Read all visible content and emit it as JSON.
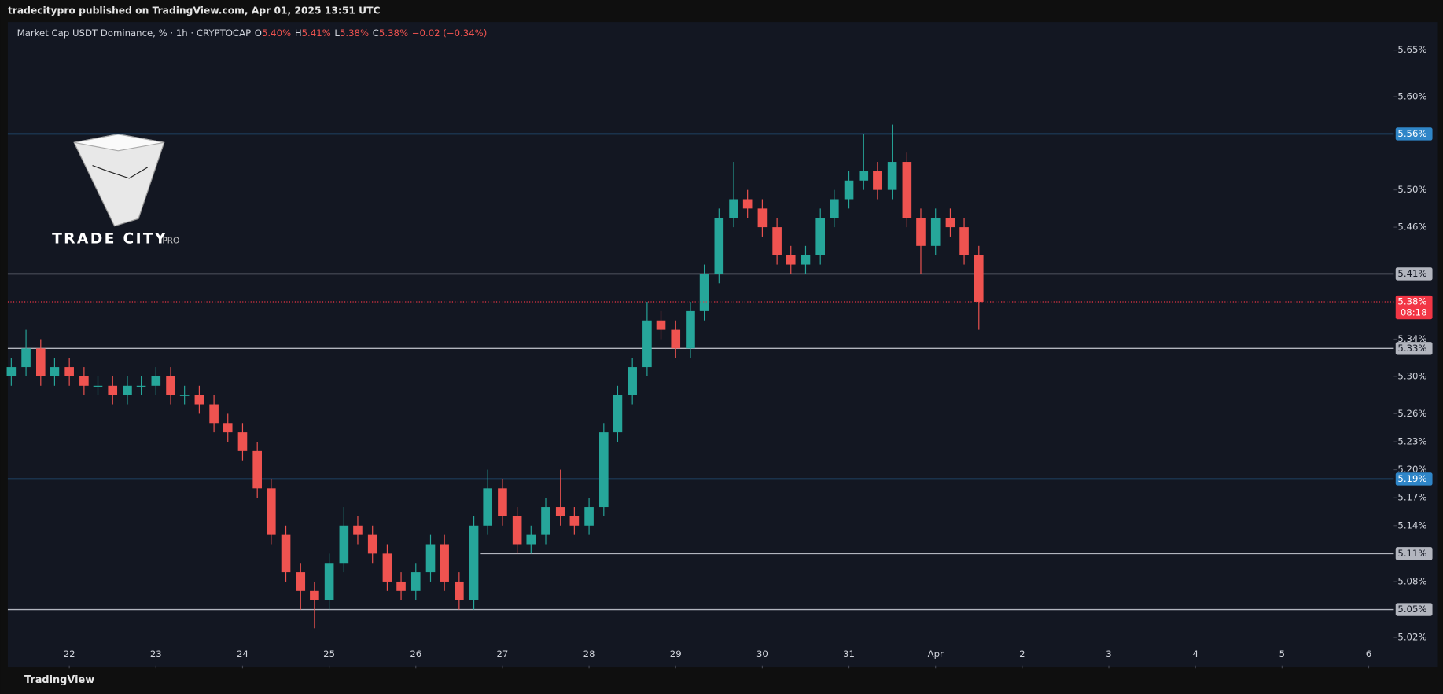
{
  "header": "tradecitypro published on TradingView.com, Apr 01, 2025 13:51 UTC",
  "footer": "TradingView",
  "logo": {
    "title": "TRADE CITY",
    "suffix": "PRO"
  },
  "chart_data": {
    "type": "candlestick",
    "title": "Market Cap USDT Dominance, % · 1h · CRYPTOCAP",
    "ohlc_legend": [
      {
        "key": "O",
        "value": "5.40%"
      },
      {
        "key": "H",
        "value": "5.41%"
      },
      {
        "key": "L",
        "value": "5.38%"
      },
      {
        "key": "C",
        "value": "5.38%"
      }
    ],
    "change": "−0.02 (−0.34%)",
    "up_color": "#26a69a",
    "down_color": "#ef5350",
    "x": [
      21.33,
      21.5,
      21.67,
      21.83,
      22.0,
      22.17,
      22.33,
      22.5,
      22.67,
      22.83,
      23.0,
      23.17,
      23.33,
      23.5,
      23.67,
      23.83,
      24.0,
      24.17,
      24.33,
      24.5,
      24.67,
      24.83,
      25.0,
      25.17,
      25.33,
      25.5,
      25.67,
      25.83,
      26.0,
      26.17,
      26.33,
      26.5,
      26.67,
      26.83,
      27.0,
      27.17,
      27.33,
      27.5,
      27.67,
      27.83,
      28.0,
      28.17,
      28.33,
      28.5,
      28.67,
      28.83,
      29.0,
      29.17,
      29.33,
      29.5,
      29.67,
      29.83,
      30.0,
      30.17,
      30.33,
      30.5,
      30.67,
      30.83,
      31.0,
      31.17,
      31.33,
      31.5,
      31.67,
      31.83,
      32.0,
      32.17,
      32.33,
      32.5
    ],
    "open": [
      5.3,
      5.31,
      5.33,
      5.3,
      5.31,
      5.3,
      5.29,
      5.29,
      5.28,
      5.29,
      5.29,
      5.3,
      5.28,
      5.28,
      5.27,
      5.25,
      5.24,
      5.22,
      5.18,
      5.13,
      5.09,
      5.07,
      5.06,
      5.1,
      5.14,
      5.13,
      5.11,
      5.08,
      5.07,
      5.09,
      5.12,
      5.08,
      5.06,
      5.14,
      5.18,
      5.15,
      5.12,
      5.13,
      5.16,
      5.15,
      5.14,
      5.16,
      5.24,
      5.28,
      5.31,
      5.36,
      5.35,
      5.33,
      5.37,
      5.41,
      5.47,
      5.49,
      5.48,
      5.46,
      5.43,
      5.42,
      5.43,
      5.47,
      5.49,
      5.51,
      5.52,
      5.5,
      5.53,
      5.47,
      5.44,
      5.47,
      5.46,
      5.43
    ],
    "high": [
      5.32,
      5.35,
      5.34,
      5.32,
      5.32,
      5.31,
      5.3,
      5.3,
      5.3,
      5.3,
      5.31,
      5.31,
      5.29,
      5.29,
      5.28,
      5.26,
      5.25,
      5.23,
      5.19,
      5.14,
      5.1,
      5.08,
      5.11,
      5.16,
      5.15,
      5.14,
      5.12,
      5.09,
      5.1,
      5.13,
      5.13,
      5.09,
      5.15,
      5.2,
      5.19,
      5.16,
      5.14,
      5.17,
      5.2,
      5.16,
      5.17,
      5.25,
      5.29,
      5.32,
      5.38,
      5.37,
      5.36,
      5.38,
      5.42,
      5.48,
      5.53,
      5.5,
      5.49,
      5.47,
      5.44,
      5.44,
      5.48,
      5.5,
      5.52,
      5.56,
      5.53,
      5.57,
      5.54,
      5.48,
      5.48,
      5.48,
      5.47,
      5.44
    ],
    "low": [
      5.29,
      5.3,
      5.29,
      5.29,
      5.29,
      5.28,
      5.28,
      5.27,
      5.27,
      5.28,
      5.28,
      5.27,
      5.27,
      5.26,
      5.24,
      5.23,
      5.21,
      5.17,
      5.12,
      5.08,
      5.05,
      5.03,
      5.05,
      5.09,
      5.12,
      5.1,
      5.07,
      5.06,
      5.06,
      5.08,
      5.07,
      5.05,
      5.05,
      5.13,
      5.14,
      5.11,
      5.11,
      5.12,
      5.14,
      5.13,
      5.13,
      5.15,
      5.23,
      5.27,
      5.3,
      5.34,
      5.32,
      5.32,
      5.36,
      5.4,
      5.46,
      5.47,
      5.45,
      5.42,
      5.41,
      5.41,
      5.42,
      5.46,
      5.48,
      5.5,
      5.49,
      5.49,
      5.46,
      5.41,
      5.43,
      5.45,
      5.42,
      5.35
    ],
    "close": [
      5.31,
      5.33,
      5.3,
      5.31,
      5.3,
      5.29,
      5.29,
      5.28,
      5.29,
      5.29,
      5.3,
      5.28,
      5.28,
      5.27,
      5.25,
      5.24,
      5.22,
      5.18,
      5.13,
      5.09,
      5.07,
      5.06,
      5.1,
      5.14,
      5.13,
      5.11,
      5.08,
      5.07,
      5.09,
      5.12,
      5.08,
      5.06,
      5.14,
      5.18,
      5.15,
      5.12,
      5.13,
      5.16,
      5.15,
      5.14,
      5.16,
      5.24,
      5.28,
      5.31,
      5.36,
      5.35,
      5.33,
      5.37,
      5.41,
      5.47,
      5.49,
      5.48,
      5.46,
      5.43,
      5.42,
      5.43,
      5.47,
      5.49,
      5.51,
      5.52,
      5.5,
      5.53,
      5.47,
      5.44,
      5.47,
      5.46,
      5.43,
      5.38
    ],
    "xlim": [
      21.29,
      37.29
    ],
    "ylim": [
      4.99,
      5.68
    ],
    "xticks": [
      22,
      23,
      24,
      25,
      26,
      27,
      28,
      29,
      30,
      31,
      {
        "value": 32,
        "label": "Apr"
      },
      {
        "value": 33,
        "label": "2"
      },
      {
        "value": 34,
        "label": "3"
      },
      {
        "value": 35,
        "label": "4"
      },
      {
        "value": 36,
        "label": "5"
      },
      {
        "value": 37,
        "label": "6"
      }
    ],
    "yticks": [
      {
        "value": 5.65,
        "label": "5.65%"
      },
      {
        "value": 5.6,
        "label": "5.60%"
      },
      {
        "value": 5.5,
        "label": "5.50%"
      },
      {
        "value": 5.46,
        "label": "5.46%"
      },
      {
        "value": 5.34,
        "label": "5.34%"
      },
      {
        "value": 5.3,
        "label": "5.30%"
      },
      {
        "value": 5.26,
        "label": "5.26%"
      },
      {
        "value": 5.23,
        "label": "5.23%"
      },
      {
        "value": 5.2,
        "label": "5.20%"
      },
      {
        "value": 5.17,
        "label": "5.17%"
      },
      {
        "value": 5.14,
        "label": "5.14%"
      },
      {
        "value": 5.08,
        "label": "5.08%"
      },
      {
        "value": 5.02,
        "label": "5.02%"
      }
    ],
    "levels": [
      {
        "value": 5.56,
        "label": "5.56%",
        "color": "#2f86c8"
      },
      {
        "value": 5.41,
        "label": "5.41%",
        "color": "#b2b5be"
      },
      {
        "value": 5.33,
        "label": "5.33%",
        "color": "#b2b5be"
      },
      {
        "value": 5.19,
        "label": "5.19%",
        "color": "#2f86c8"
      },
      {
        "value": 5.11,
        "label": "5.11%",
        "color": "#b2b5be",
        "start": 26.75
      },
      {
        "value": 5.05,
        "label": "5.05%",
        "color": "#b2b5be"
      }
    ],
    "last_price": {
      "value": 5.38,
      "label": "5.38%",
      "countdown": "08:18",
      "color": "#f23645"
    }
  }
}
